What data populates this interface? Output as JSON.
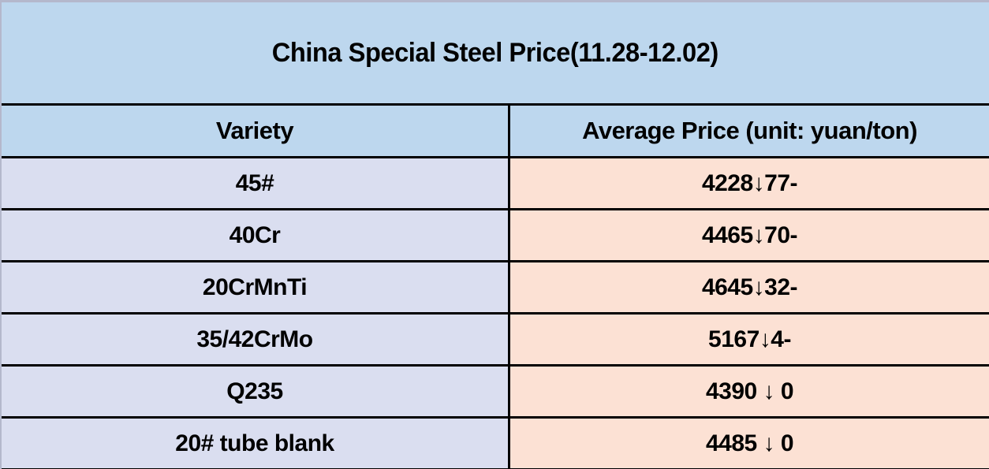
{
  "title": "China Special Steel Price(11.28-12.02)",
  "table": {
    "headers": [
      "Variety",
      "Average Price (unit: yuan/ton)"
    ],
    "rows": [
      {
        "variety": "45#",
        "price": "4228↓77-"
      },
      {
        "variety": "40Cr",
        "price": "4465↓70-"
      },
      {
        "variety": "20CrMnTi",
        "price": "4645↓32-"
      },
      {
        "variety": "35/42CrMo",
        "price": "5167↓4-"
      },
      {
        "variety": "Q235",
        "price": "4390 ↓ 0"
      },
      {
        "variety": "20# tube blank",
        "price": "4485 ↓ 0"
      }
    ]
  },
  "chart_data": {
    "type": "table",
    "title": "China Special Steel Price(11.28-12.02)",
    "columns": [
      "Variety",
      "Average Price (unit: yuan/ton)"
    ],
    "rows": [
      [
        "45#",
        "4228↓77-"
      ],
      [
        "40Cr",
        "4465↓70-"
      ],
      [
        "20CrMnTi",
        "4645↓32-"
      ],
      [
        "35/42CrMo",
        "5167↓4-"
      ],
      [
        "Q235",
        "4390 ↓ 0"
      ],
      [
        "20# tube blank",
        "4485 ↓ 0"
      ]
    ],
    "parsed_prices": [
      {
        "variety": "45#",
        "avg_price_yuan_per_ton": 4228,
        "change": -77
      },
      {
        "variety": "40Cr",
        "avg_price_yuan_per_ton": 4465,
        "change": -70
      },
      {
        "variety": "20CrMnTi",
        "avg_price_yuan_per_ton": 4645,
        "change": -32
      },
      {
        "variety": "35/42CrMo",
        "avg_price_yuan_per_ton": 5167,
        "change": -4
      },
      {
        "variety": "Q235",
        "avg_price_yuan_per_ton": 4390,
        "change": 0
      },
      {
        "variety": "20# tube blank",
        "avg_price_yuan_per_ton": 4485,
        "change": 0
      }
    ]
  },
  "colors": {
    "header_blue": "#bdd7ee",
    "variety_lavender": "#dadef0",
    "price_peach": "#fce1d4",
    "border_black": "#000000",
    "edge_gray": "#b4b8cc",
    "text_black": "#000000"
  }
}
